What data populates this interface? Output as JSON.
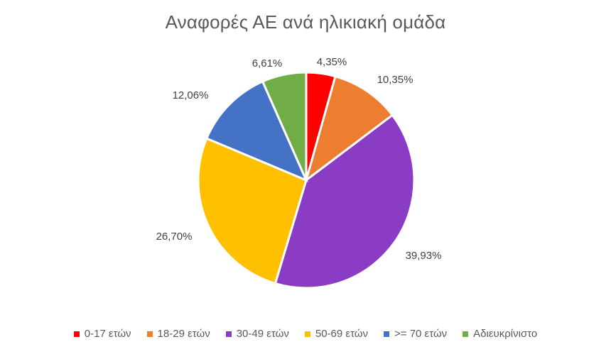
{
  "chart_data": {
    "type": "pie",
    "title": "Αναφορές ΑΕ ανά ηλικιακή ομάδα",
    "categories": [
      "0-17 ετών",
      "18-29 ετών",
      "30-49 ετών",
      "50-69 ετών",
      ">= 70 ετών",
      "Αδιευκρίνιστο"
    ],
    "values": [
      4.35,
      10.35,
      39.93,
      26.7,
      12.06,
      6.61
    ],
    "labels": [
      "4,35%",
      "10,35%",
      "39,93%",
      "26,70%",
      "12,06%",
      "6,61%"
    ],
    "colors": [
      "#ff0000",
      "#ed7d31",
      "#8a3cc5",
      "#ffc000",
      "#4472c4",
      "#70ad47"
    ],
    "legend_position": "bottom"
  }
}
